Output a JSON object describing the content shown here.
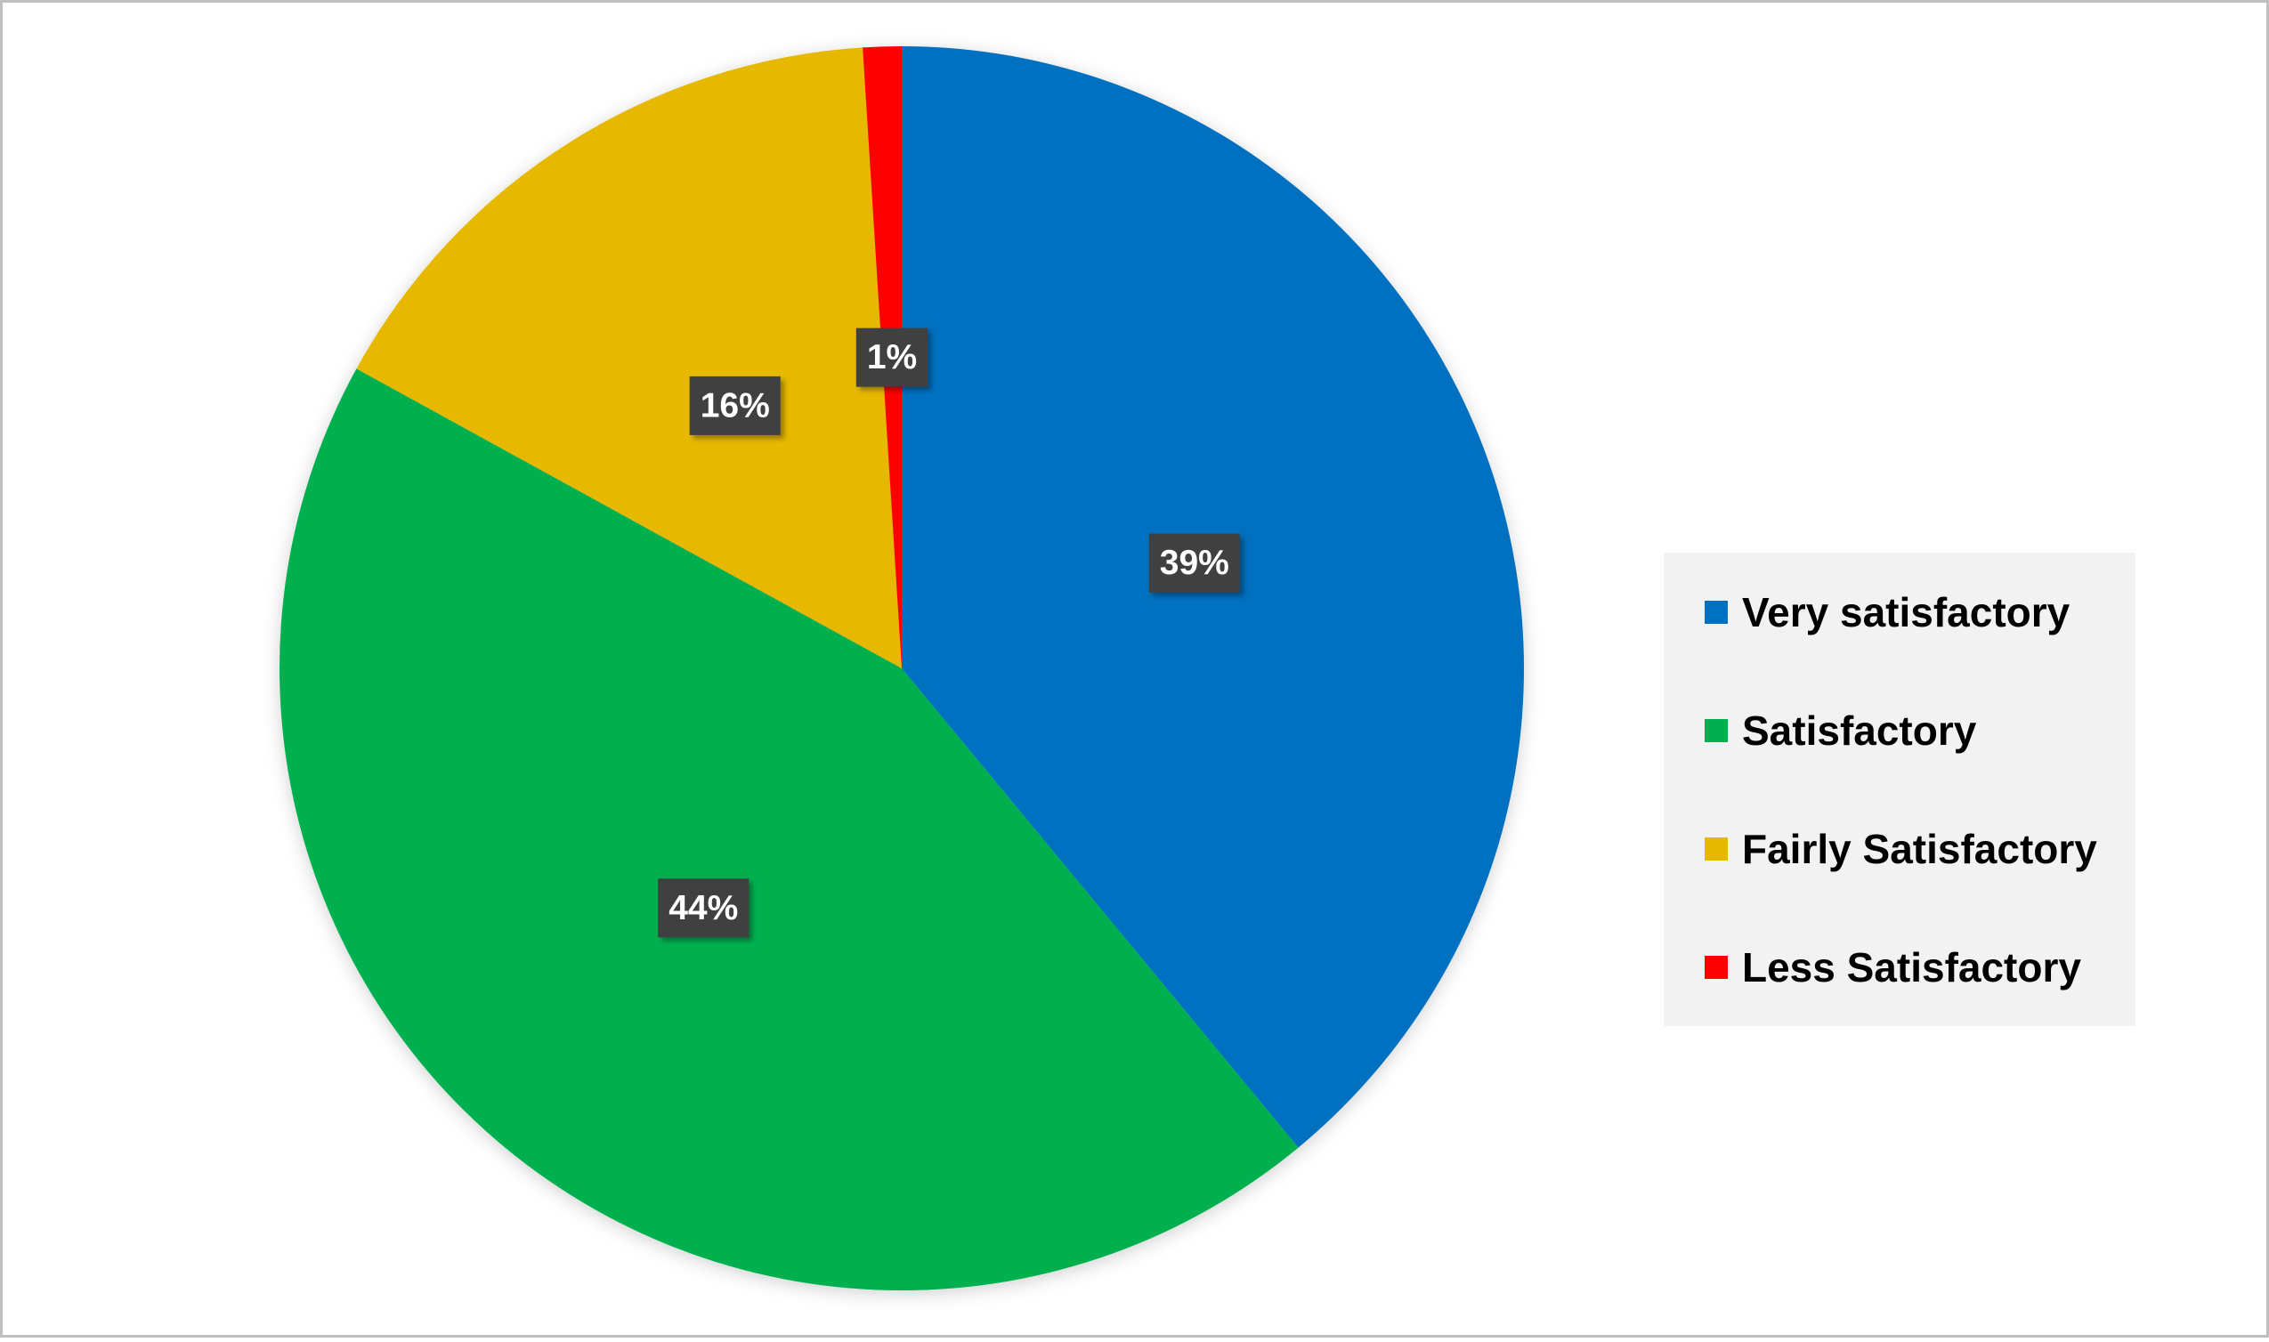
{
  "chart_data": {
    "type": "pie",
    "categories": [
      "Very satisfactory",
      "Satisfactory",
      "Fairly Satisfactory",
      "Less Satisfactory"
    ],
    "values": [
      39,
      44,
      16,
      1
    ],
    "value_labels": [
      "39%",
      "44%",
      "16%",
      "1%"
    ],
    "colors": [
      "#0070c0",
      "#00b050",
      "#e6b800",
      "#ff0000"
    ],
    "legend": "right"
  }
}
